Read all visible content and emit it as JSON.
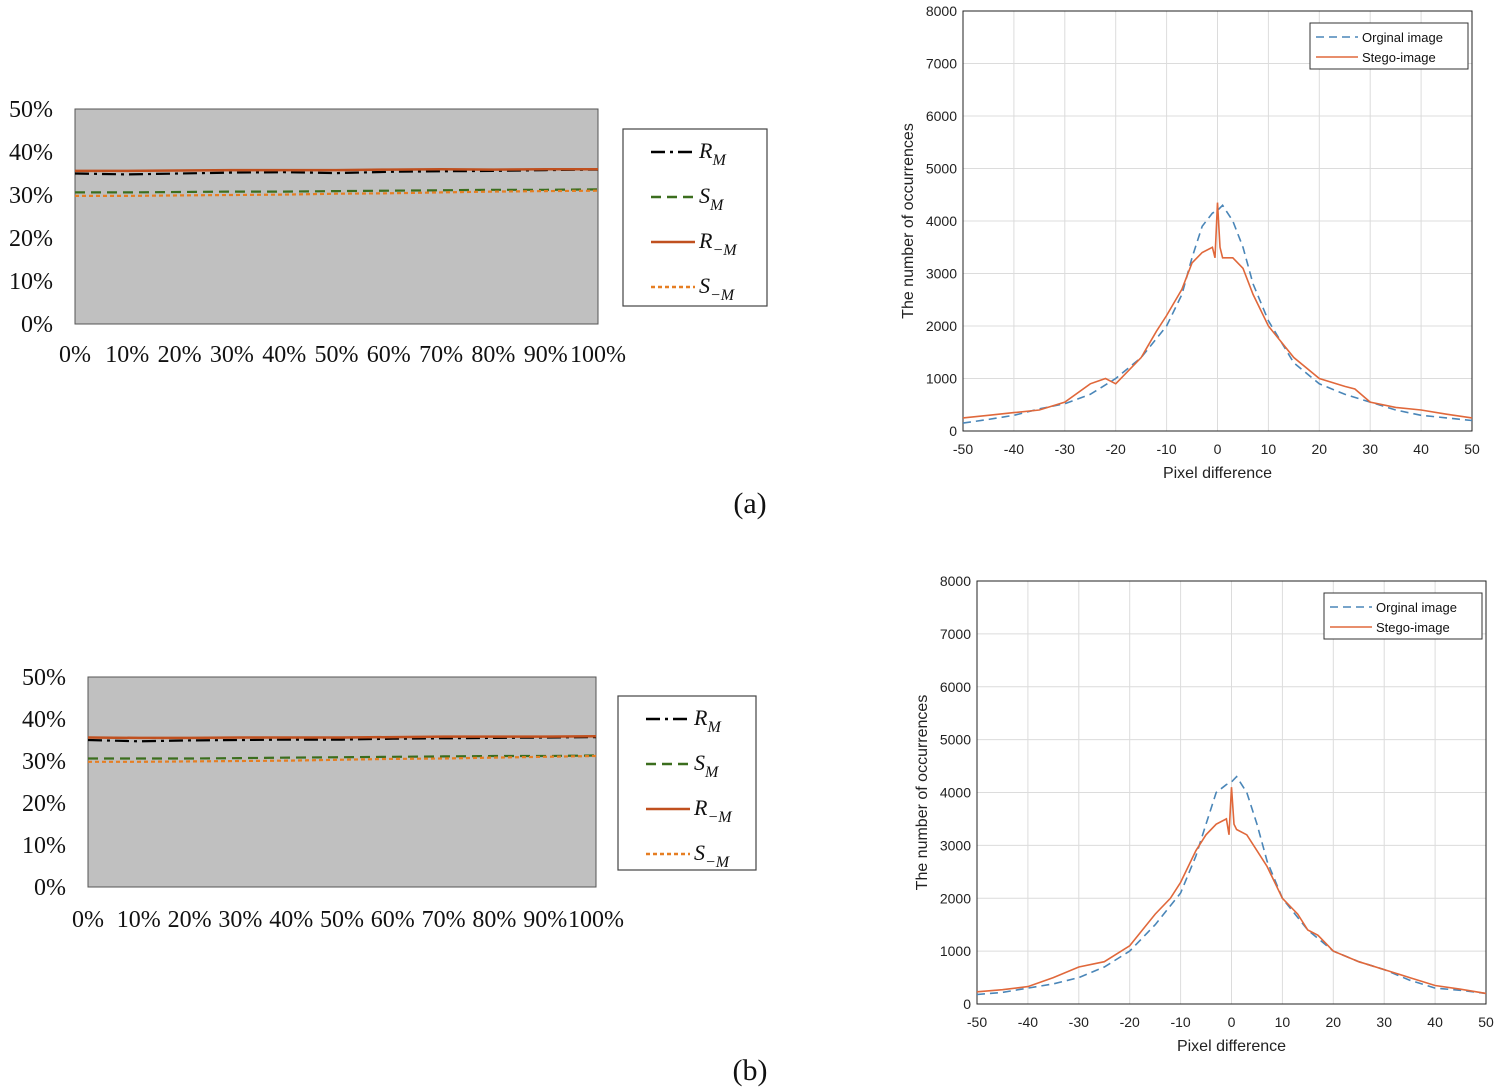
{
  "panels": [
    {
      "label": "(a)",
      "rs_chart": {
        "type": "line",
        "x": [
          "0%",
          "10%",
          "20%",
          "30%",
          "40%",
          "50%",
          "60%",
          "70%",
          "80%",
          "90%",
          "100%"
        ],
        "y_ticks": [
          "50%",
          "40%",
          "30%",
          "20%",
          "10%",
          "0%"
        ],
        "ylim": [
          0,
          50
        ],
        "series": [
          {
            "name": "R_M",
            "label_main": "R",
            "label_sub": "M",
            "style": "dashdot",
            "color": "#000000",
            "values": [
              35.0,
              34.8,
              35.0,
              35.2,
              35.3,
              35.1,
              35.4,
              35.5,
              35.6,
              35.8,
              35.9
            ]
          },
          {
            "name": "S_M",
            "label_main": "S",
            "label_sub": "M",
            "style": "dash",
            "color": "#3b6e1e",
            "values": [
              30.6,
              30.6,
              30.7,
              30.8,
              30.8,
              30.9,
              31.0,
              31.1,
              31.2,
              31.2,
              31.3
            ]
          },
          {
            "name": "R_-M",
            "label_main": "R",
            "label_sub": "−M",
            "style": "solid",
            "color": "#c0501f",
            "values": [
              35.6,
              35.6,
              35.7,
              35.8,
              35.8,
              35.8,
              35.9,
              36.0,
              35.9,
              36.0,
              36.0
            ]
          },
          {
            "name": "S_-M",
            "label_main": "S",
            "label_sub": "−M",
            "style": "dot",
            "color": "#e67e22",
            "values": [
              29.8,
              29.8,
              29.9,
              30.0,
              30.1,
              30.3,
              30.4,
              30.6,
              30.8,
              30.9,
              31.0
            ]
          }
        ]
      },
      "hist_chart": {
        "type": "line",
        "xlabel": "Pixel difference",
        "ylabel": "The number of occurrences",
        "xlim": [
          -50,
          50
        ],
        "ylim": [
          0,
          8000
        ],
        "x_ticks": [
          "-50",
          "-40",
          "-30",
          "-20",
          "-10",
          "0",
          "10",
          "20",
          "30",
          "40",
          "50"
        ],
        "y_ticks": [
          "0",
          "1000",
          "2000",
          "3000",
          "4000",
          "5000",
          "6000",
          "7000",
          "8000"
        ],
        "legend": [
          "Orginal image",
          "Stego-image"
        ],
        "series": [
          {
            "name": "Orginal image",
            "style": "dash",
            "color": "#4a86b8",
            "points": [
              [
                -50,
                150
              ],
              [
                -45,
                220
              ],
              [
                -40,
                300
              ],
              [
                -35,
                420
              ],
              [
                -30,
                520
              ],
              [
                -25,
                700
              ],
              [
                -20,
                1000
              ],
              [
                -15,
                1400
              ],
              [
                -10,
                2000
              ],
              [
                -7,
                2600
              ],
              [
                -5,
                3300
              ],
              [
                -3,
                3900
              ],
              [
                -1,
                4150
              ],
              [
                0,
                4200
              ],
              [
                1,
                4300
              ],
              [
                3,
                4000
              ],
              [
                5,
                3500
              ],
              [
                7,
                2800
              ],
              [
                10,
                2100
              ],
              [
                15,
                1300
              ],
              [
                20,
                900
              ],
              [
                25,
                700
              ],
              [
                30,
                550
              ],
              [
                35,
                400
              ],
              [
                40,
                300
              ],
              [
                45,
                250
              ],
              [
                50,
                200
              ]
            ]
          },
          {
            "name": "Stego-image",
            "style": "solid",
            "color": "#e0683b",
            "points": [
              [
                -50,
                250
              ],
              [
                -45,
                300
              ],
              [
                -40,
                350
              ],
              [
                -35,
                400
              ],
              [
                -30,
                550
              ],
              [
                -25,
                900
              ],
              [
                -22,
                1000
              ],
              [
                -20,
                900
              ],
              [
                -15,
                1400
              ],
              [
                -12,
                1900
              ],
              [
                -10,
                2200
              ],
              [
                -7,
                2700
              ],
              [
                -5,
                3200
              ],
              [
                -3,
                3400
              ],
              [
                -1,
                3500
              ],
              [
                -0.5,
                3300
              ],
              [
                0,
                4350
              ],
              [
                0.5,
                3500
              ],
              [
                1,
                3300
              ],
              [
                3,
                3300
              ],
              [
                5,
                3100
              ],
              [
                7,
                2600
              ],
              [
                10,
                2000
              ],
              [
                15,
                1400
              ],
              [
                20,
                1000
              ],
              [
                25,
                850
              ],
              [
                27,
                800
              ],
              [
                30,
                550
              ],
              [
                35,
                450
              ],
              [
                40,
                400
              ],
              [
                45,
                320
              ],
              [
                50,
                250
              ]
            ]
          }
        ]
      }
    },
    {
      "label": "(b)",
      "rs_chart": {
        "type": "line",
        "x": [
          "0%",
          "10%",
          "20%",
          "30%",
          "40%",
          "50%",
          "60%",
          "70%",
          "80%",
          "90%",
          "100%"
        ],
        "y_ticks": [
          "50%",
          "40%",
          "30%",
          "20%",
          "10%",
          "0%"
        ],
        "ylim": [
          0,
          50
        ],
        "series": [
          {
            "name": "R_M",
            "label_main": "R",
            "label_sub": "M",
            "style": "dashdot",
            "color": "#000000",
            "values": [
              35.0,
              34.7,
              34.9,
              35.0,
              35.1,
              35.1,
              35.3,
              35.4,
              35.5,
              35.6,
              35.7
            ]
          },
          {
            "name": "S_M",
            "label_main": "S",
            "label_sub": "M",
            "style": "dash",
            "color": "#3b6e1e",
            "values": [
              30.6,
              30.6,
              30.6,
              30.7,
              30.8,
              30.9,
              31.0,
              31.1,
              31.2,
              31.2,
              31.3
            ]
          },
          {
            "name": "R_-M",
            "label_main": "R",
            "label_sub": "−M",
            "style": "solid",
            "color": "#c0501f",
            "values": [
              35.6,
              35.5,
              35.5,
              35.6,
              35.6,
              35.6,
              35.7,
              35.8,
              35.8,
              35.8,
              35.9
            ]
          },
          {
            "name": "S_-M",
            "label_main": "S",
            "label_sub": "−M",
            "style": "dot",
            "color": "#e67e22",
            "values": [
              29.8,
              29.8,
              29.9,
              30.0,
              30.1,
              30.3,
              30.5,
              30.6,
              30.8,
              31.0,
              31.2
            ]
          }
        ]
      },
      "hist_chart": {
        "type": "line",
        "xlabel": "Pixel difference",
        "ylabel": "The number of occurrences",
        "xlim": [
          -50,
          50
        ],
        "ylim": [
          0,
          8000
        ],
        "x_ticks": [
          "-50",
          "-40",
          "-30",
          "-20",
          "-10",
          "0",
          "10",
          "20",
          "30",
          "40",
          "50"
        ],
        "y_ticks": [
          "0",
          "1000",
          "2000",
          "3000",
          "4000",
          "5000",
          "6000",
          "7000",
          "8000"
        ],
        "legend": [
          "Orginal image",
          "Stego-image"
        ],
        "series": [
          {
            "name": "Orginal image",
            "style": "dash",
            "color": "#4a86b8",
            "points": [
              [
                -50,
                180
              ],
              [
                -45,
                220
              ],
              [
                -40,
                300
              ],
              [
                -35,
                380
              ],
              [
                -30,
                500
              ],
              [
                -25,
                700
              ],
              [
                -20,
                1000
              ],
              [
                -15,
                1500
              ],
              [
                -10,
                2100
              ],
              [
                -7,
                2800
              ],
              [
                -5,
                3400
              ],
              [
                -3,
                4000
              ],
              [
                -1,
                4150
              ],
              [
                0,
                4200
              ],
              [
                1,
                4300
              ],
              [
                3,
                4000
              ],
              [
                5,
                3400
              ],
              [
                7,
                2700
              ],
              [
                10,
                2000
              ],
              [
                15,
                1400
              ],
              [
                20,
                1000
              ],
              [
                25,
                800
              ],
              [
                30,
                650
              ],
              [
                35,
                450
              ],
              [
                40,
                300
              ],
              [
                45,
                260
              ],
              [
                50,
                200
              ]
            ]
          },
          {
            "name": "Stego-image",
            "style": "solid",
            "color": "#e0683b",
            "points": [
              [
                -50,
                230
              ],
              [
                -45,
                270
              ],
              [
                -40,
                330
              ],
              [
                -35,
                500
              ],
              [
                -30,
                700
              ],
              [
                -25,
                800
              ],
              [
                -20,
                1100
              ],
              [
                -15,
                1700
              ],
              [
                -12,
                2000
              ],
              [
                -10,
                2300
              ],
              [
                -7,
                2900
              ],
              [
                -5,
                3200
              ],
              [
                -3,
                3400
              ],
              [
                -1,
                3500
              ],
              [
                -0.5,
                3200
              ],
              [
                0,
                4100
              ],
              [
                0.5,
                3400
              ],
              [
                1,
                3300
              ],
              [
                3,
                3200
              ],
              [
                5,
                2900
              ],
              [
                7,
                2600
              ],
              [
                10,
                2000
              ],
              [
                13,
                1700
              ],
              [
                15,
                1400
              ],
              [
                17,
                1300
              ],
              [
                20,
                1000
              ],
              [
                25,
                800
              ],
              [
                30,
                650
              ],
              [
                35,
                500
              ],
              [
                40,
                350
              ],
              [
                45,
                280
              ],
              [
                50,
                200
              ]
            ]
          }
        ]
      }
    }
  ]
}
